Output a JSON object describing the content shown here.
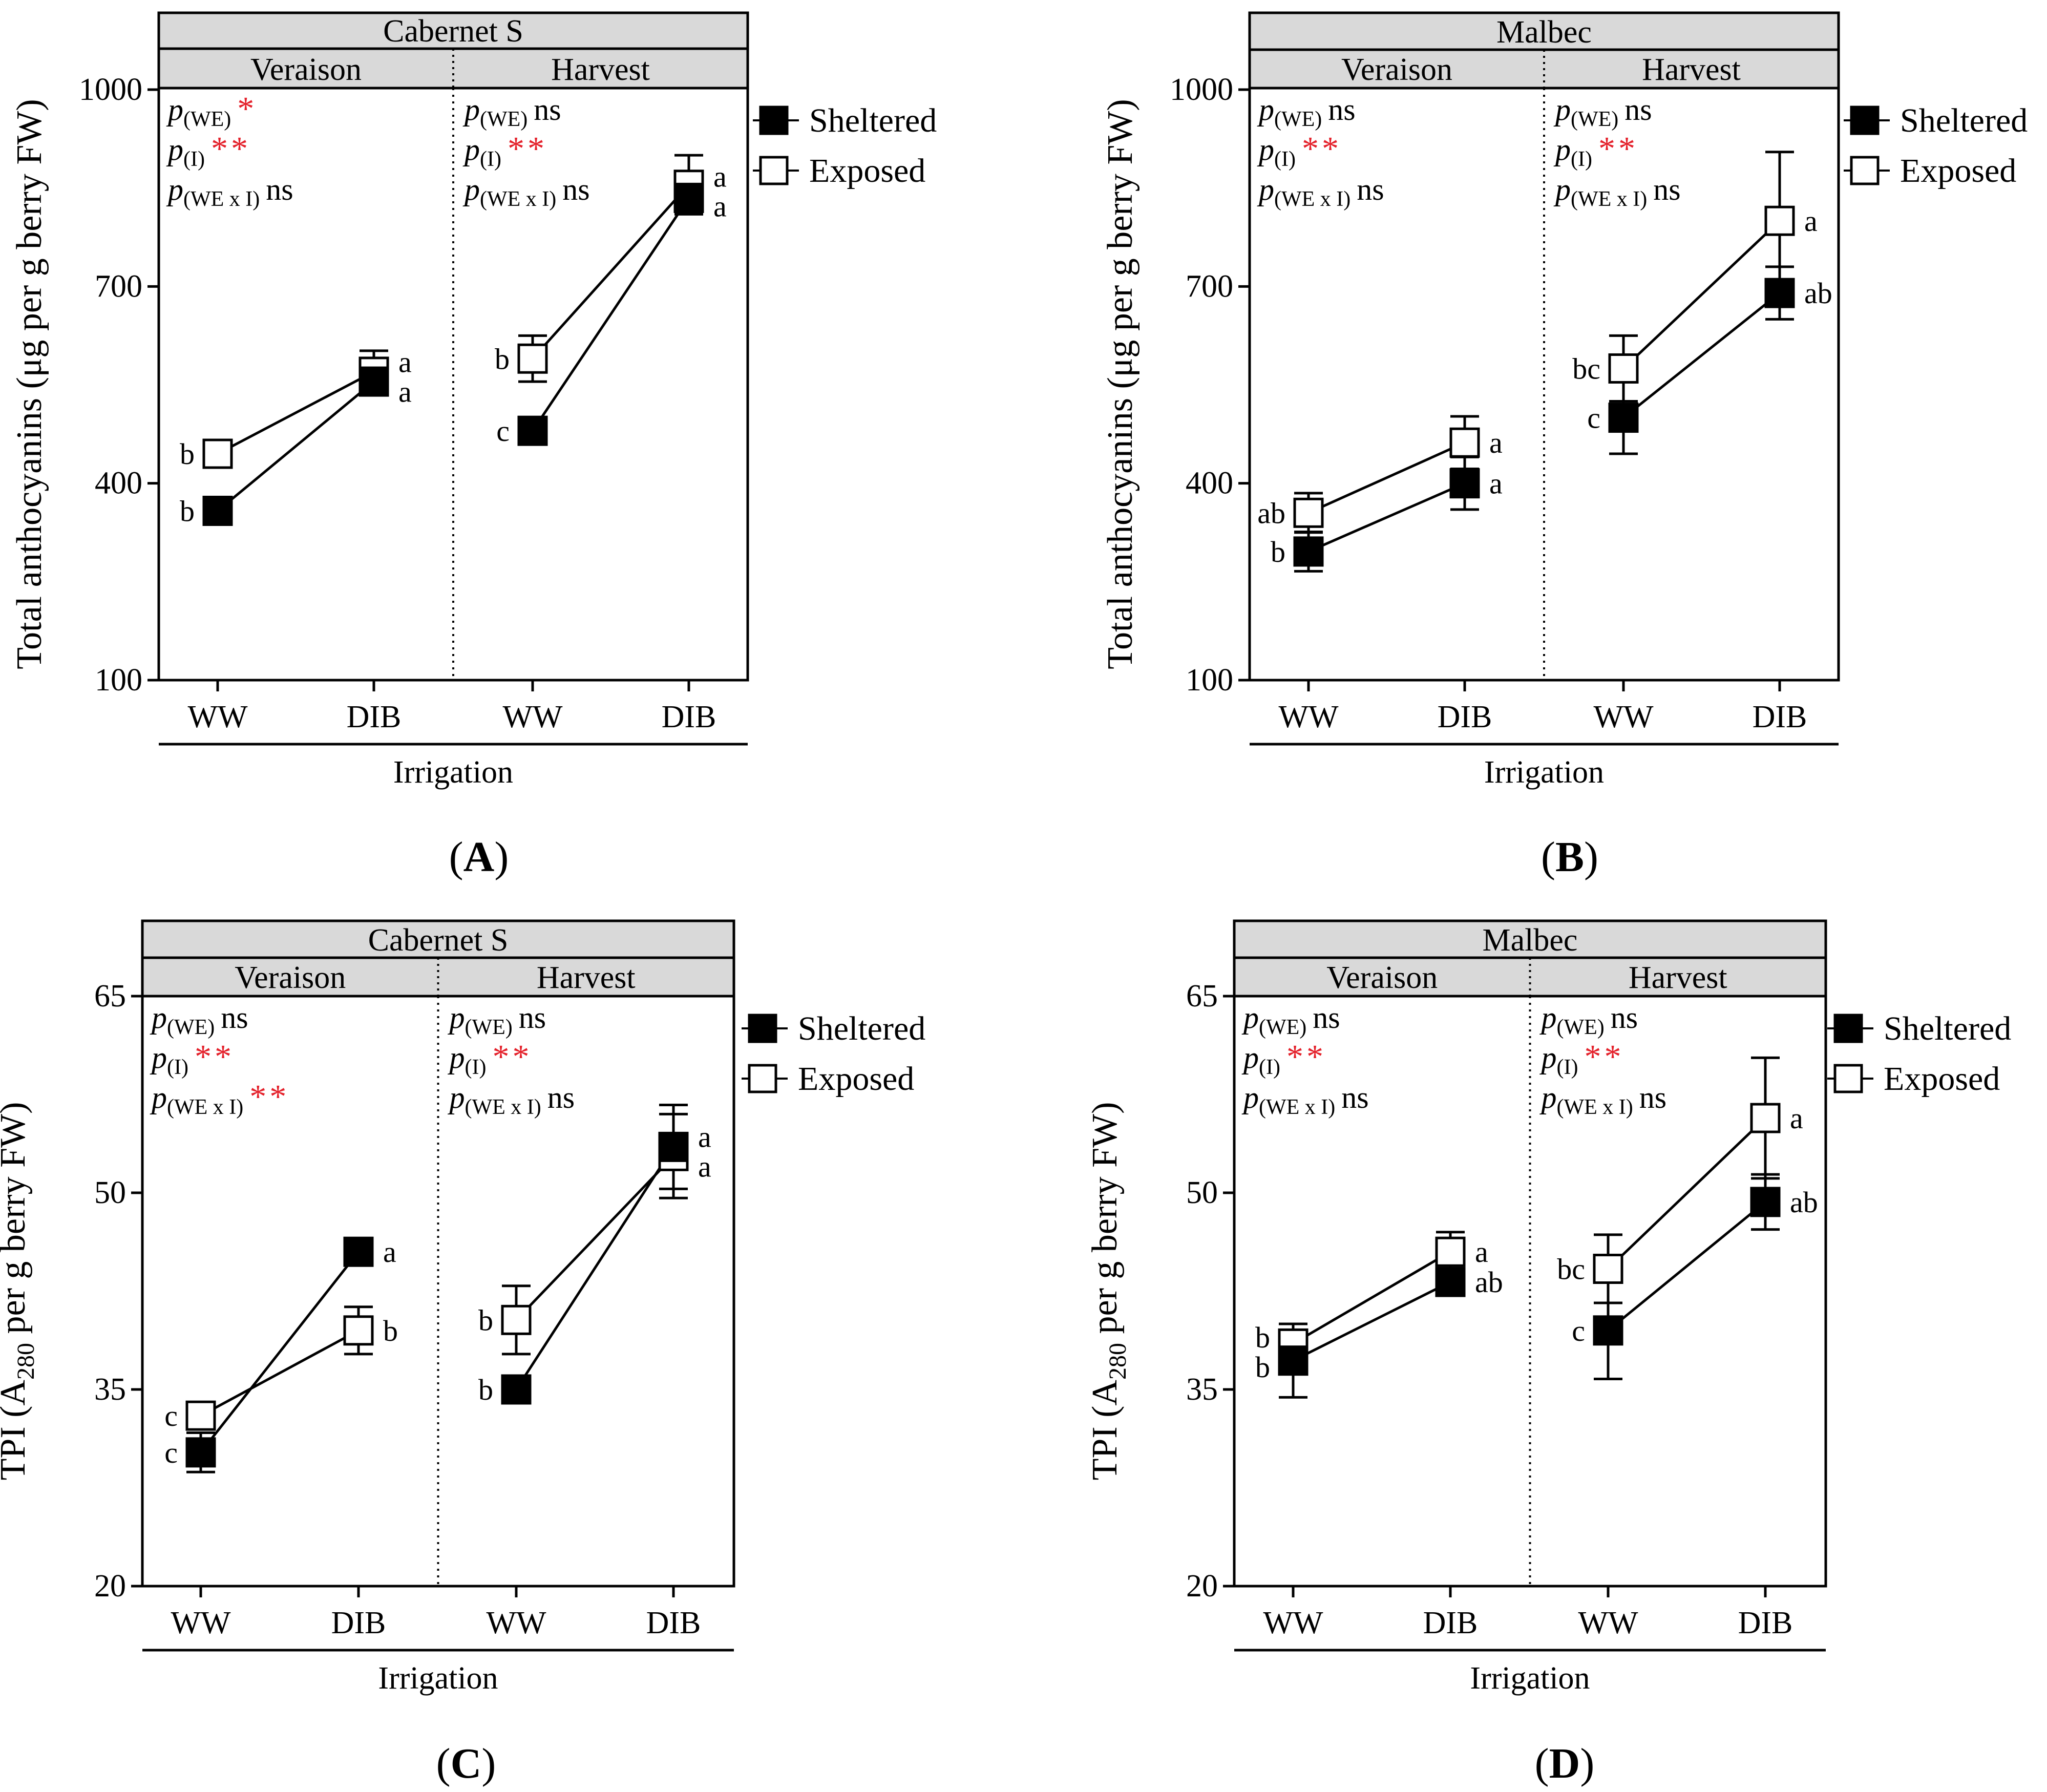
{
  "legend": {
    "sheltered": "Sheltered",
    "exposed": "Exposed"
  },
  "common": {
    "xlabel": "Irrigation",
    "stage_left": "Veraison",
    "stage_right": "Harvest",
    "categories": [
      "WW",
      "DIB"
    ]
  },
  "colors": {
    "sheltered": "#000000",
    "exposed": "#ffffff",
    "significance": "#e4202a",
    "header_fill": "#d9d9d9"
  },
  "chart_data": [
    {
      "id": "A",
      "panel_label": "A",
      "type": "line",
      "title": "Cabernet S",
      "ylabel_main": "Total anthocyanins (μg per g berry FW)",
      "ylabel_sub": "",
      "ylabel_tail": "",
      "ylim": [
        100,
        1000
      ],
      "yticks": [
        "100",
        "400",
        "700",
        "1000"
      ],
      "stats": [
        [
          {
            "sub": "(WE)",
            "val": "*"
          },
          {
            "sub": "(I)",
            "val": "**"
          },
          {
            "sub": "(WE x I)",
            "val": "ns"
          }
        ],
        [
          {
            "sub": "(WE)",
            "val": "ns"
          },
          {
            "sub": "(I)",
            "val": "**"
          },
          {
            "sub": "(WE x I)",
            "val": "ns"
          }
        ]
      ],
      "stages": [
        {
          "stage": "Veraison",
          "sheltered": {
            "values": [
              358,
              555
            ],
            "err": [
              18,
              20
            ],
            "letters": [
              "b",
              "a"
            ]
          },
          "exposed": {
            "values": [
              445,
              570
            ],
            "err": [
              10,
              32
            ],
            "letters": [
              "b",
              "a"
            ]
          }
        },
        {
          "stage": "Harvest",
          "sheltered": {
            "values": [
              480,
              835
            ],
            "err": [
              10,
              22
            ],
            "letters": [
              "c",
              "a"
            ]
          },
          "exposed": {
            "values": [
              590,
              855
            ],
            "err": [
              35,
              45
            ],
            "letters": [
              "b",
              "a"
            ]
          }
        }
      ]
    },
    {
      "id": "B",
      "panel_label": "B",
      "type": "line",
      "title": "Malbec",
      "ylabel_main": "Total anthocyanins (μg per g berry FW)",
      "ylabel_sub": "",
      "ylabel_tail": "",
      "ylim": [
        100,
        1000
      ],
      "yticks": [
        "100",
        "400",
        "700",
        "1000"
      ],
      "stats": [
        [
          {
            "sub": "(WE)",
            "val": "ns"
          },
          {
            "sub": "(I)",
            "val": "**"
          },
          {
            "sub": "(WE x I)",
            "val": "ns"
          }
        ],
        [
          {
            "sub": "(WE)",
            "val": "ns"
          },
          {
            "sub": "(I)",
            "val": "**"
          },
          {
            "sub": "(WE x I)",
            "val": "ns"
          }
        ]
      ],
      "stages": [
        {
          "stage": "Veraison",
          "sheltered": {
            "values": [
              296,
              400
            ],
            "err": [
              30,
              40
            ],
            "letters": [
              "b",
              "a"
            ]
          },
          "exposed": {
            "values": [
              355,
              462
            ],
            "err": [
              30,
              40
            ],
            "letters": [
              "ab",
              "a"
            ]
          }
        },
        {
          "stage": "Harvest",
          "sheltered": {
            "values": [
              500,
              690
            ],
            "err": [
              55,
              40
            ],
            "letters": [
              "c",
              "ab"
            ]
          },
          "exposed": {
            "values": [
              575,
              800
            ],
            "err": [
              50,
              105
            ],
            "letters": [
              "bc",
              "a"
            ]
          }
        }
      ]
    },
    {
      "id": "C",
      "panel_label": "C",
      "type": "line",
      "title": "Cabernet S",
      "ylabel_main": "TPI (A",
      "ylabel_sub": "280",
      "ylabel_tail": " per g berry FW)",
      "ylim": [
        20,
        65
      ],
      "yticks": [
        "20",
        "35",
        "50",
        "65"
      ],
      "stats": [
        [
          {
            "sub": "(WE)",
            "val": "ns"
          },
          {
            "sub": "(I)",
            "val": "**"
          },
          {
            "sub": "(WE x I)",
            "val": "**"
          }
        ],
        [
          {
            "sub": "(WE)",
            "val": "ns"
          },
          {
            "sub": "(I)",
            "val": "**"
          },
          {
            "sub": "(WE x I)",
            "val": "ns"
          }
        ]
      ],
      "stages": [
        {
          "stage": "Veraison",
          "sheltered": {
            "values": [
              30.2,
              45.5
            ],
            "err": [
              1.5,
              0.8
            ],
            "letters": [
              "c",
              "a"
            ]
          },
          "exposed": {
            "values": [
              33,
              39.5
            ],
            "err": [
              0.8,
              1.8
            ],
            "letters": [
              "c",
              "b"
            ]
          }
        },
        {
          "stage": "Harvest",
          "sheltered": {
            "values": [
              35,
              53.5
            ],
            "err": [
              0.6,
              3.2
            ],
            "letters": [
              "b",
              "a"
            ]
          },
          "exposed": {
            "values": [
              40.3,
              52.8
            ],
            "err": [
              2.6,
              3.2
            ],
            "letters": [
              "b",
              "a"
            ]
          }
        }
      ]
    },
    {
      "id": "D",
      "panel_label": "D",
      "type": "line",
      "title": "Malbec",
      "ylabel_main": "TPI (A",
      "ylabel_sub": "280",
      "ylabel_tail": " per g berry FW)",
      "ylim": [
        20,
        65
      ],
      "yticks": [
        "20",
        "35",
        "50",
        "65"
      ],
      "stats": [
        [
          {
            "sub": "(WE)",
            "val": "ns"
          },
          {
            "sub": "(I)",
            "val": "**"
          },
          {
            "sub": "(WE x I)",
            "val": "ns"
          }
        ],
        [
          {
            "sub": "(WE)",
            "val": "ns"
          },
          {
            "sub": "(I)",
            "val": "**"
          },
          {
            "sub": "(WE x I)",
            "val": "ns"
          }
        ]
      ],
      "stages": [
        {
          "stage": "Veraison",
          "sheltered": {
            "values": [
              37.2,
              43.2
            ],
            "err": [
              2.8,
              0.8
            ],
            "letters": [
              "b",
              "ab"
            ]
          },
          "exposed": {
            "values": [
              38.5,
              45.5
            ],
            "err": [
              1.5,
              1.5
            ],
            "letters": [
              "b",
              "a"
            ]
          }
        },
        {
          "stage": "Harvest",
          "sheltered": {
            "values": [
              39.5,
              49.3
            ],
            "err": [
              3.7,
              2.1
            ],
            "letters": [
              "c",
              "ab"
            ]
          },
          "exposed": {
            "values": [
              44.2,
              55.7
            ],
            "err": [
              2.6,
              4.6
            ],
            "letters": [
              "bc",
              "a"
            ]
          }
        }
      ]
    }
  ]
}
